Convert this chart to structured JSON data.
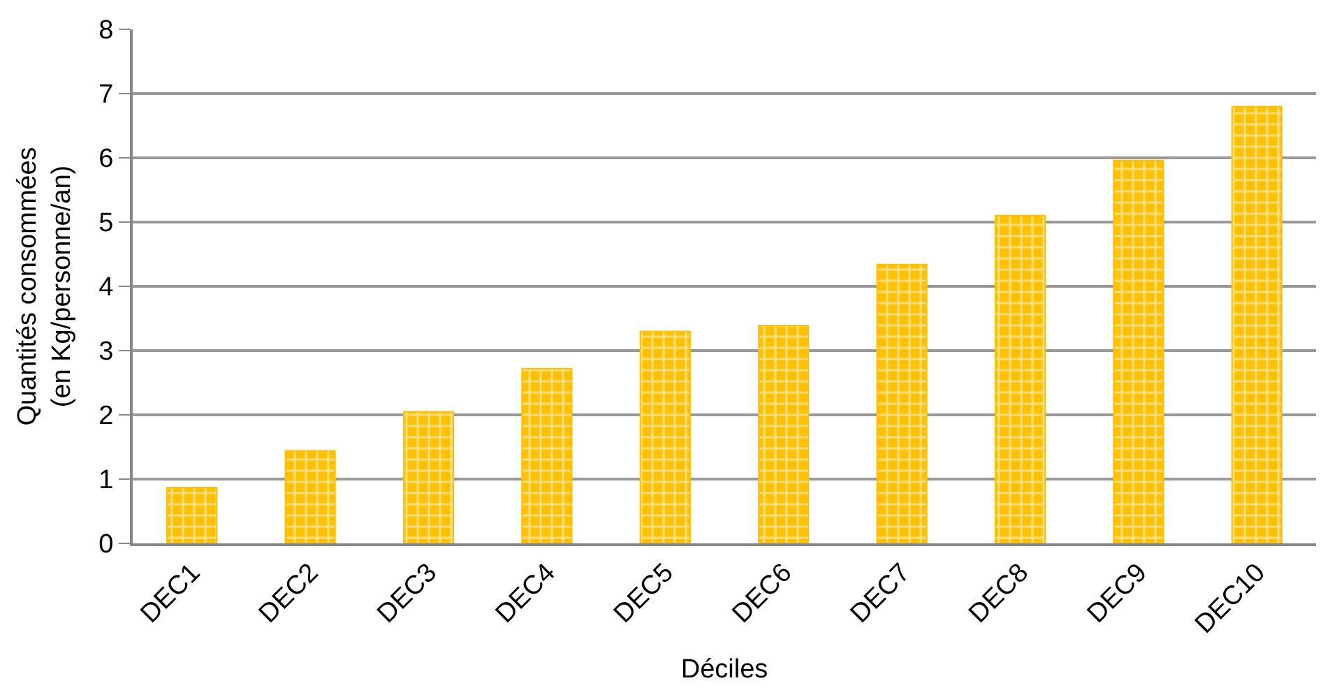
{
  "chart_data": {
    "type": "bar",
    "xlabel": "Déciles",
    "ylabel": "Quantités consommées\n(en Kg/personne/an)",
    "categories": [
      "DEC1",
      "DEC2",
      "DEC3",
      "DEC4",
      "DEC5",
      "DEC6",
      "DEC7",
      "DEC8",
      "DEC9",
      "DEC10"
    ],
    "values": [
      0.87,
      1.44,
      2.05,
      2.72,
      3.3,
      3.39,
      4.34,
      5.1,
      5.96,
      6.8
    ],
    "color": "#ffc000",
    "ylim": [
      0,
      8
    ],
    "yticks": [
      0,
      1,
      2,
      3,
      4,
      5,
      6,
      7,
      8
    ],
    "grid": "y"
  }
}
